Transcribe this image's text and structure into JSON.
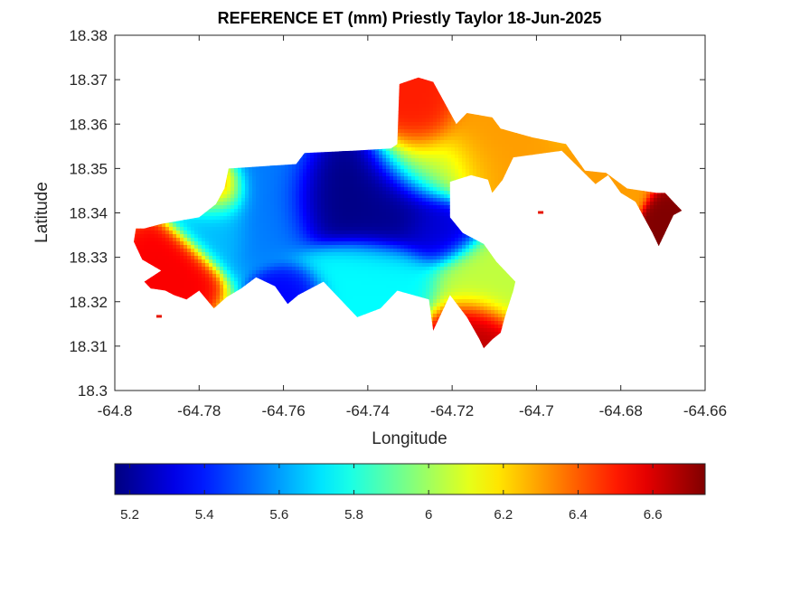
{
  "chart_data": {
    "type": "heatmap",
    "title": "REFERENCE ET (mm) Priestly Taylor 18-Jun-2025",
    "xlabel": "Longitude",
    "ylabel": "Latitude",
    "xlim": [
      -64.8,
      -64.66
    ],
    "ylim": [
      18.3,
      18.38
    ],
    "xticks": [
      -64.8,
      -64.78,
      -64.76,
      -64.74,
      -64.72,
      -64.7,
      -64.68,
      -64.66
    ],
    "yticks": [
      18.3,
      18.31,
      18.32,
      18.33,
      18.34,
      18.35,
      18.36,
      18.37,
      18.38
    ],
    "xtick_labels": [
      "-64.8",
      "-64.78",
      "-64.76",
      "-64.74",
      "-64.72",
      "-64.7",
      "-64.68",
      "-64.66"
    ],
    "ytick_labels": [
      "18.3",
      "18.31",
      "18.32",
      "18.33",
      "18.34",
      "18.35",
      "18.36",
      "18.37",
      "18.38"
    ],
    "colormap": "jet",
    "colorbar": {
      "location": "below",
      "range": [
        5.16,
        6.74
      ],
      "ticks": [
        5.2,
        5.4,
        5.6,
        5.8,
        6.0,
        6.2,
        6.4,
        6.6
      ],
      "tick_labels": [
        "5.2",
        "5.4",
        "5.6",
        "5.8",
        "6",
        "6.2",
        "6.4",
        "6.6"
      ]
    },
    "grid": false,
    "island_outline": [
      [
        -64.793,
        18.3365
      ],
      [
        -64.789,
        18.3375
      ],
      [
        -64.78,
        18.339
      ],
      [
        -64.776,
        18.342
      ],
      [
        -64.774,
        18.3455
      ],
      [
        -64.773,
        18.35
      ],
      [
        -64.757,
        18.351
      ],
      [
        -64.755,
        18.3535
      ],
      [
        -64.7435,
        18.354
      ],
      [
        -64.7345,
        18.3545
      ],
      [
        -64.733,
        18.3555
      ],
      [
        -64.7325,
        18.369
      ],
      [
        -64.728,
        18.3705
      ],
      [
        -64.7245,
        18.3695
      ],
      [
        -64.719,
        18.36
      ],
      [
        -64.7165,
        18.3625
      ],
      [
        -64.7105,
        18.3615
      ],
      [
        -64.7085,
        18.359
      ],
      [
        -64.701,
        18.357
      ],
      [
        -64.693,
        18.3555
      ],
      [
        -64.6885,
        18.3495
      ],
      [
        -64.6835,
        18.349
      ],
      [
        -64.6785,
        18.3455
      ],
      [
        -64.6715,
        18.3445
      ],
      [
        -64.6695,
        18.3445
      ],
      [
        -64.667,
        18.342
      ],
      [
        -64.6655,
        18.3405
      ],
      [
        -64.6675,
        18.3395
      ],
      [
        -64.6695,
        18.3355
      ],
      [
        -64.671,
        18.3325
      ],
      [
        -64.6725,
        18.3355
      ],
      [
        -64.6765,
        18.3425
      ],
      [
        -64.68,
        18.3445
      ],
      [
        -64.683,
        18.3485
      ],
      [
        -64.686,
        18.3465
      ],
      [
        -64.694,
        18.354
      ],
      [
        -64.7055,
        18.3525
      ],
      [
        -64.708,
        18.3475
      ],
      [
        -64.7105,
        18.3445
      ],
      [
        -64.7115,
        18.3475
      ],
      [
        -64.7155,
        18.3485
      ],
      [
        -64.7205,
        18.347
      ],
      [
        -64.7205,
        18.339
      ],
      [
        -64.7175,
        18.3355
      ],
      [
        -64.7125,
        18.333
      ],
      [
        -64.7095,
        18.329
      ],
      [
        -64.705,
        18.3245
      ],
      [
        -64.7055,
        18.3225
      ],
      [
        -64.7075,
        18.3165
      ],
      [
        -64.7085,
        18.313
      ],
      [
        -64.7105,
        18.3115
      ],
      [
        -64.7125,
        18.3095
      ],
      [
        -64.7135,
        18.3115
      ],
      [
        -64.7165,
        18.3165
      ],
      [
        -64.7205,
        18.3215
      ],
      [
        -64.7245,
        18.3135
      ],
      [
        -64.7255,
        18.3205
      ],
      [
        -64.733,
        18.3225
      ],
      [
        -64.737,
        18.3185
      ],
      [
        -64.7425,
        18.3165
      ],
      [
        -64.7445,
        18.3185
      ],
      [
        -64.7505,
        18.3245
      ],
      [
        -64.7565,
        18.3215
      ],
      [
        -64.759,
        18.3195
      ],
      [
        -64.762,
        18.3235
      ],
      [
        -64.7665,
        18.3255
      ],
      [
        -64.77,
        18.323
      ],
      [
        -64.7735,
        18.321
      ],
      [
        -64.7765,
        18.3185
      ],
      [
        -64.78,
        18.3225
      ],
      [
        -64.783,
        18.3205
      ],
      [
        -64.786,
        18.3215
      ],
      [
        -64.788,
        18.3225
      ],
      [
        -64.7915,
        18.323
      ],
      [
        -64.793,
        18.3245
      ],
      [
        -64.789,
        18.327
      ],
      [
        -64.7935,
        18.3295
      ],
      [
        -64.7955,
        18.3335
      ],
      [
        -64.795,
        18.3365
      ]
    ],
    "isolated_points": [
      [
        -64.7895,
        18.3166
      ],
      [
        -64.699,
        18.34
      ]
    ],
    "value_field_centers": [
      {
        "lon": -64.7485,
        "lat": 18.3435,
        "value": 5.16,
        "spread_lon": 0.0055,
        "spread_lat": 0.0045
      },
      {
        "lon": -64.7355,
        "lat": 18.3425,
        "value": 5.18,
        "spread_lon": 0.007,
        "spread_lat": 0.0055
      },
      {
        "lon": -64.7225,
        "lat": 18.3365,
        "value": 5.3,
        "spread_lon": 0.0045,
        "spread_lat": 0.0035
      },
      {
        "lon": -64.7575,
        "lat": 18.3225,
        "value": 5.35,
        "spread_lon": 0.0035,
        "spread_lat": 0.0025
      },
      {
        "lon": -64.7625,
        "lat": 18.3435,
        "value": 5.55,
        "spread_lon": 0.006,
        "spread_lat": 0.006
      },
      {
        "lon": -64.7765,
        "lat": 18.339,
        "value": 5.65,
        "spread_lon": 0.004,
        "spread_lat": 0.004
      },
      {
        "lon": -64.7405,
        "lat": 18.3255,
        "value": 5.75,
        "spread_lon": 0.0075,
        "spread_lat": 0.004
      },
      {
        "lon": -64.7245,
        "lat": 18.3505,
        "value": 6.05,
        "spread_lon": 0.006,
        "spread_lat": 0.004
      },
      {
        "lon": -64.7105,
        "lat": 18.325,
        "value": 6.05,
        "spread_lon": 0.006,
        "spread_lat": 0.005
      },
      {
        "lon": -64.7125,
        "lat": 18.3545,
        "value": 6.3,
        "spread_lon": 0.006,
        "spread_lat": 0.006
      },
      {
        "lon": -64.7275,
        "lat": 18.3625,
        "value": 6.5,
        "spread_lon": 0.004,
        "spread_lat": 0.006
      },
      {
        "lon": -64.7875,
        "lat": 18.3265,
        "value": 6.55,
        "spread_lon": 0.004,
        "spread_lat": 0.004
      },
      {
        "lon": -64.7765,
        "lat": 18.345,
        "value": 6.45,
        "spread_lon": 0.0035,
        "spread_lat": 0.003
      },
      {
        "lon": -64.7145,
        "lat": 18.3125,
        "value": 6.65,
        "spread_lon": 0.004,
        "spread_lat": 0.004
      },
      {
        "lon": -64.6695,
        "lat": 18.337,
        "value": 6.74,
        "spread_lon": 0.002,
        "spread_lat": 0.004
      },
      {
        "lon": -64.685,
        "lat": 18.3475,
        "value": 6.3,
        "spread_lon": 0.006,
        "spread_lat": 0.003
      }
    ]
  }
}
